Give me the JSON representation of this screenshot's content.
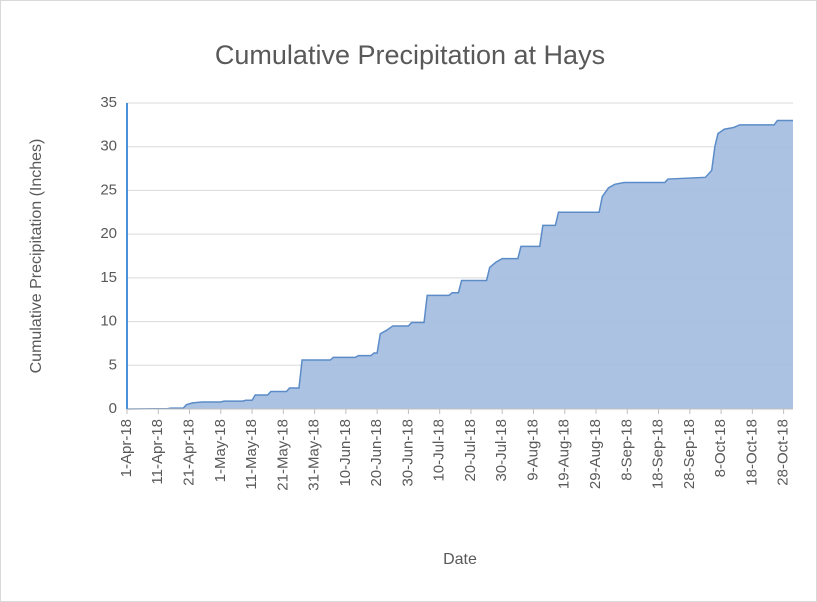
{
  "chart_data": {
    "type": "area",
    "title": "Cumulative Precipitation at Hays",
    "x_label": "Date",
    "y_label": "Cumulative Precipitation (Inches)",
    "x": [
      "2018-04-01",
      "2018-04-14",
      "2018-04-15",
      "2018-04-19",
      "2018-04-20",
      "2018-04-22",
      "2018-04-25",
      "2018-05-01",
      "2018-05-02",
      "2018-05-08",
      "2018-05-09",
      "2018-05-11",
      "2018-05-12",
      "2018-05-16",
      "2018-05-17",
      "2018-05-22",
      "2018-05-23",
      "2018-05-26",
      "2018-05-27",
      "2018-06-05",
      "2018-06-06",
      "2018-06-13",
      "2018-06-14",
      "2018-06-18",
      "2018-06-19",
      "2018-06-20",
      "2018-06-21",
      "2018-06-23",
      "2018-06-25",
      "2018-06-30",
      "2018-07-01",
      "2018-07-05",
      "2018-07-06",
      "2018-07-13",
      "2018-07-14",
      "2018-07-16",
      "2018-07-17",
      "2018-07-25",
      "2018-07-26",
      "2018-07-28",
      "2018-07-30",
      "2018-08-04",
      "2018-08-05",
      "2018-08-11",
      "2018-08-12",
      "2018-08-16",
      "2018-08-17",
      "2018-08-30",
      "2018-08-31",
      "2018-09-02",
      "2018-09-04",
      "2018-09-07",
      "2018-09-20",
      "2018-09-21",
      "2018-10-03",
      "2018-10-05",
      "2018-10-06",
      "2018-10-07",
      "2018-10-09",
      "2018-10-12",
      "2018-10-14",
      "2018-10-25",
      "2018-10-26",
      "2018-10-31"
    ],
    "values": [
      0,
      0.05,
      0.1,
      0.1,
      0.5,
      0.7,
      0.8,
      0.8,
      0.9,
      0.9,
      1.0,
      1.0,
      1.6,
      1.6,
      2.0,
      2.0,
      2.4,
      2.4,
      5.6,
      5.6,
      5.9,
      5.9,
      6.1,
      6.1,
      6.4,
      6.4,
      8.6,
      9.0,
      9.5,
      9.5,
      9.9,
      9.9,
      13.0,
      13.0,
      13.3,
      13.3,
      14.7,
      14.7,
      16.2,
      16.8,
      17.2,
      17.2,
      18.6,
      18.6,
      21.0,
      21.0,
      22.5,
      22.5,
      24.3,
      25.3,
      25.7,
      25.9,
      25.9,
      26.3,
      26.5,
      27.3,
      30.0,
      31.5,
      32.0,
      32.2,
      32.5,
      32.5,
      33.0,
      33.0
    ],
    "color": "#a7bfe0",
    "line_color": "#5b8cc8",
    "xlim": [
      "2018-04-01",
      "2018-10-31"
    ],
    "xticks": [
      {
        "value": "2018-04-01",
        "label": "1-Apr-18"
      },
      {
        "value": "2018-04-11",
        "label": "11-Apr-18"
      },
      {
        "value": "2018-04-21",
        "label": "21-Apr-18"
      },
      {
        "value": "2018-05-01",
        "label": "1-May-18"
      },
      {
        "value": "2018-05-11",
        "label": "11-May-18"
      },
      {
        "value": "2018-05-21",
        "label": "21-May-18"
      },
      {
        "value": "2018-05-31",
        "label": "31-May-18"
      },
      {
        "value": "2018-06-10",
        "label": "10-Jun-18"
      },
      {
        "value": "2018-06-20",
        "label": "20-Jun-18"
      },
      {
        "value": "2018-06-30",
        "label": "30-Jun-18"
      },
      {
        "value": "2018-07-10",
        "label": "10-Jul-18"
      },
      {
        "value": "2018-07-20",
        "label": "20-Jul-18"
      },
      {
        "value": "2018-07-30",
        "label": "30-Jul-18"
      },
      {
        "value": "2018-08-09",
        "label": "9-Aug-18"
      },
      {
        "value": "2018-08-19",
        "label": "19-Aug-18"
      },
      {
        "value": "2018-08-29",
        "label": "29-Aug-18"
      },
      {
        "value": "2018-09-08",
        "label": "8-Sep-18"
      },
      {
        "value": "2018-09-18",
        "label": "18-Sep-18"
      },
      {
        "value": "2018-09-28",
        "label": "28-Sep-18"
      },
      {
        "value": "2018-10-08",
        "label": "8-Oct-18"
      },
      {
        "value": "2018-10-18",
        "label": "18-Oct-18"
      },
      {
        "value": "2018-10-28",
        "label": "28-Oct-18"
      }
    ],
    "ylim": [
      0,
      35
    ],
    "yticks": [
      0,
      5,
      10,
      15,
      20,
      25,
      30,
      35
    ],
    "grid": true
  }
}
